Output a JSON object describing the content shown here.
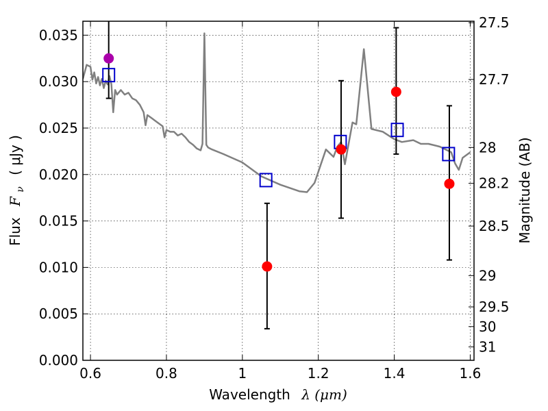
{
  "chart_data": {
    "type": "scatter",
    "xlabel_text": "Wavelength",
    "xlabel_math": "λ (μm)",
    "ylabel_text": "Flux",
    "ylabel_math": "F",
    "ylabel_sub": "ν",
    "ylabel_unit": "( μJy )",
    "y2label": "Magnitude (AB)",
    "xlim": [
      0.58,
      1.61
    ],
    "ylim": [
      0.0,
      0.0365
    ],
    "grid": true,
    "x_ticks": [
      0.6,
      0.8,
      1.0,
      1.2,
      1.4,
      1.6
    ],
    "x_tick_labels": [
      "0.6",
      "0.8",
      "1",
      "1.2",
      "1.4",
      "1.6"
    ],
    "y_ticks": [
      0.0,
      0.005,
      0.01,
      0.015,
      0.02,
      0.025,
      0.03,
      0.035
    ],
    "y_tick_labels": [
      "0.000",
      "0.005",
      "0.010",
      "0.015",
      "0.020",
      "0.025",
      "0.030",
      "0.035"
    ],
    "mag_ticks": [
      {
        "flux": 0.03634,
        "label": "27.5"
      },
      {
        "flux": 0.03023,
        "label": "27.7"
      },
      {
        "flux": 0.02291,
        "label": "28"
      },
      {
        "flux": 0.01905,
        "label": "28.2"
      },
      {
        "flux": 0.01445,
        "label": "28.5"
      },
      {
        "flux": 0.00912,
        "label": "29"
      },
      {
        "flux": 0.00575,
        "label": "29.5"
      },
      {
        "flux": 0.00363,
        "label": "30"
      },
      {
        "flux": 0.00145,
        "label": "31"
      }
    ],
    "spectrum": {
      "color": "#808080",
      "x": [
        0.58,
        0.59,
        0.6,
        0.605,
        0.61,
        0.615,
        0.62,
        0.625,
        0.63,
        0.635,
        0.64,
        0.645,
        0.65,
        0.655,
        0.66,
        0.665,
        0.67,
        0.68,
        0.69,
        0.7,
        0.71,
        0.72,
        0.73,
        0.74,
        0.745,
        0.75,
        0.76,
        0.77,
        0.78,
        0.79,
        0.795,
        0.8,
        0.81,
        0.82,
        0.83,
        0.84,
        0.85,
        0.86,
        0.87,
        0.88,
        0.89,
        0.895,
        0.9,
        0.905,
        0.91,
        0.92,
        0.95,
        1.0,
        1.05,
        1.1,
        1.15,
        1.17,
        1.19,
        1.22,
        1.24,
        1.25,
        1.26,
        1.265,
        1.27,
        1.29,
        1.3,
        1.32,
        1.34,
        1.37,
        1.4,
        1.42,
        1.45,
        1.47,
        1.49,
        1.52,
        1.55,
        1.56,
        1.57,
        1.58,
        1.6
      ],
      "y": [
        0.0303,
        0.0318,
        0.0316,
        0.0302,
        0.031,
        0.0298,
        0.0305,
        0.0296,
        0.0303,
        0.0293,
        0.0301,
        0.0297,
        0.0306,
        0.0297,
        0.0267,
        0.0291,
        0.0286,
        0.0291,
        0.0286,
        0.0288,
        0.0282,
        0.028,
        0.0275,
        0.0267,
        0.0253,
        0.0264,
        0.0261,
        0.0258,
        0.0255,
        0.0252,
        0.024,
        0.0248,
        0.0246,
        0.0246,
        0.0242,
        0.0244,
        0.024,
        0.0235,
        0.0232,
        0.0228,
        0.0226,
        0.0233,
        0.0352,
        0.0232,
        0.0229,
        0.0227,
        0.0222,
        0.0213,
        0.0198,
        0.0189,
        0.0182,
        0.0181,
        0.0191,
        0.0227,
        0.0219,
        0.023,
        0.0235,
        0.0223,
        0.0211,
        0.0256,
        0.0254,
        0.0335,
        0.0249,
        0.0246,
        0.0238,
        0.0235,
        0.0237,
        0.0233,
        0.0233,
        0.023,
        0.0224,
        0.0212,
        0.0205,
        0.0218,
        0.0224
      ]
    },
    "model_points": {
      "color": "#0000cc",
      "x": [
        0.648,
        1.062,
        1.258,
        1.408,
        1.543
      ],
      "y": [
        0.0307,
        0.0194,
        0.0235,
        0.0248,
        0.0222
      ]
    },
    "observed_points": {
      "color": "#ff0000",
      "x": [
        1.065,
        1.26,
        1.405,
        1.545
      ],
      "y": [
        0.0101,
        0.0227,
        0.0289,
        0.019
      ],
      "err_lo": [
        0.0067,
        0.0074,
        0.0067,
        0.0082
      ],
      "err_hi": [
        0.0068,
        0.0074,
        0.0069,
        0.0084
      ]
    },
    "highlight_point": {
      "color": "#aa00aa",
      "x": 0.648,
      "y": 0.0325,
      "err_lo": 0.0043,
      "err_hi": 0.0045
    }
  }
}
